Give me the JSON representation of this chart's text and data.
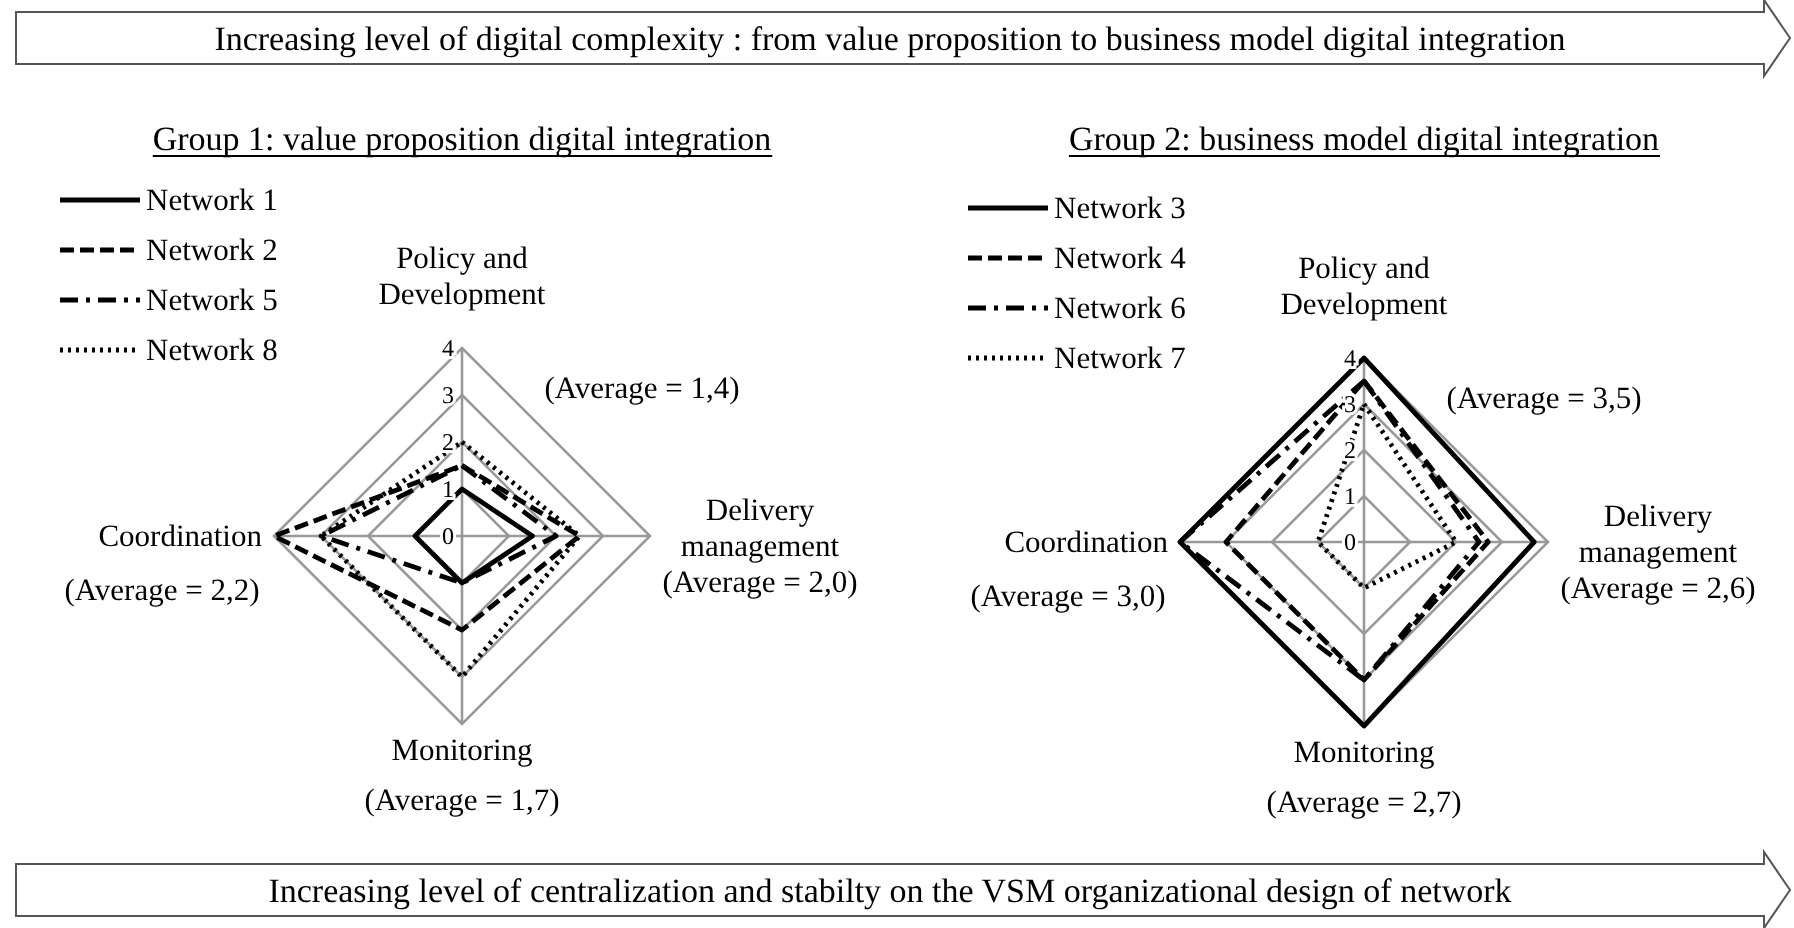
{
  "chart_data": [
    {
      "type": "radar",
      "title": "Group 1: value proposition digital integration",
      "categories": [
        "Policy and Development",
        "Delivery management",
        "Monitoring",
        "Coordination"
      ],
      "ylim": [
        0,
        4
      ],
      "yticks": [
        0,
        1,
        2,
        3,
        4
      ],
      "legend": "top left",
      "grid": true,
      "annotations": [
        "Increasing level of digital complexity : from value proposition to business model  digital integration",
        "(Average = 1,4)",
        "(Average = 2,0)",
        "(Average = 1,7)",
        "(Average = 2,2)"
      ],
      "series": [
        {
          "name": "Network 1",
          "color": "#000000",
          "line_style": "solid",
          "values": [
            1,
            1.5,
            1,
            1
          ]
        },
        {
          "name": "Network 2",
          "color": "#000000",
          "line_style": "dashed",
          "values": [
            1.5,
            2.5,
            2,
            4
          ]
        },
        {
          "name": "Network 5",
          "color": "#000000",
          "line_style": "dashdot",
          "values": [
            1.5,
            2,
            1,
            3
          ]
        },
        {
          "name": "Network 8",
          "color": "#000000",
          "line_style": "dotted",
          "values": [
            2,
            2.5,
            3,
            3
          ]
        }
      ]
    },
    {
      "type": "radar",
      "title": "Group 2: business model digital integration",
      "categories": [
        "Policy and Development",
        "Delivery management",
        "Monitoring",
        "Coordination"
      ],
      "ylim": [
        0,
        4
      ],
      "yticks": [
        0,
        1,
        2,
        3,
        4
      ],
      "legend": "top left",
      "grid": true,
      "annotations": [
        "(Average = 3,5)",
        "(Average = 2,6)",
        "(Average = 2,7)",
        "(Average = 3,0)",
        "Increasing level of centralization and stabilty on the VSM organizational design of network"
      ],
      "series": [
        {
          "name": "Network 3",
          "color": "#000000",
          "line_style": "solid",
          "values": [
            4,
            3.7,
            4,
            4
          ]
        },
        {
          "name": "Network 4",
          "color": "#000000",
          "line_style": "dashed",
          "values": [
            3.5,
            2.7,
            3,
            3
          ]
        },
        {
          "name": "Network 6",
          "color": "#000000",
          "line_style": "dashdot",
          "values": [
            3.5,
            2.5,
            3,
            4
          ]
        },
        {
          "name": "Network 7",
          "color": "#000000",
          "line_style": "dotted",
          "values": [
            3,
            2,
            1,
            1
          ]
        }
      ]
    }
  ]
}
